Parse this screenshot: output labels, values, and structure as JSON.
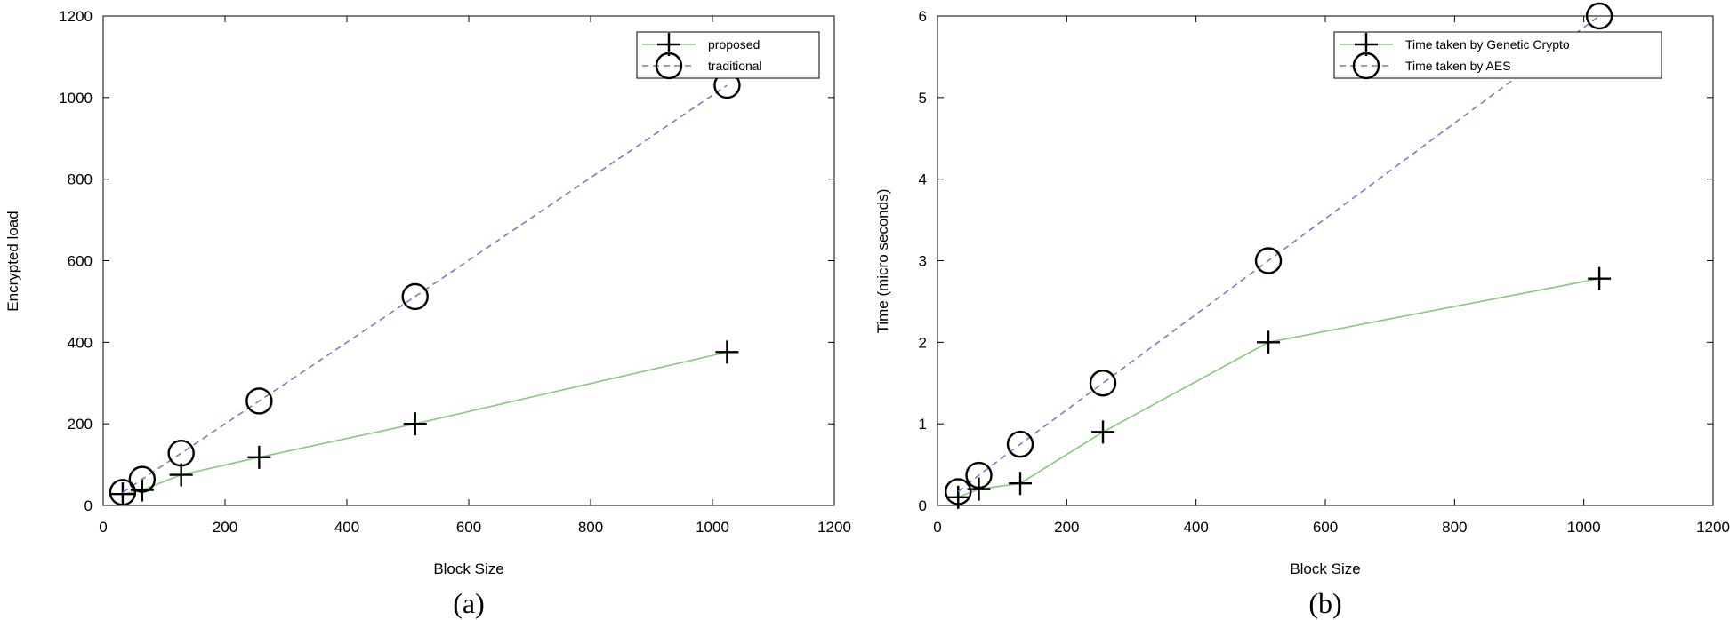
{
  "chart_data": [
    {
      "type": "line",
      "caption": "(a)",
      "xlabel": "Block Size",
      "ylabel": "Encrypted load",
      "xlim": [
        0,
        1200
      ],
      "ylim": [
        0,
        1200
      ],
      "xticks": [
        0,
        200,
        400,
        600,
        800,
        1000,
        1200
      ],
      "yticks": [
        0,
        200,
        400,
        600,
        800,
        1000,
        1200
      ],
      "legend_position": "top-right",
      "series": [
        {
          "name": "proposed",
          "color": "#86c97a",
          "line": "solid",
          "marker": "plus",
          "points": [
            [
              32,
              28
            ],
            [
              64,
              38
            ],
            [
              128,
              75
            ],
            [
              256,
              118
            ],
            [
              512,
              200
            ],
            [
              1024,
              376
            ]
          ]
        },
        {
          "name": "traditional",
          "color": "#7b7bc8",
          "line": "dashed",
          "marker": "circle",
          "points": [
            [
              32,
              32
            ],
            [
              64,
              64
            ],
            [
              128,
              128
            ],
            [
              256,
              256
            ],
            [
              512,
              512
            ],
            [
              1024,
              1030
            ]
          ]
        }
      ]
    },
    {
      "type": "line",
      "caption": "(b)",
      "xlabel": "Block Size",
      "ylabel": "Time (micro seconds)",
      "xlim": [
        0,
        1200
      ],
      "ylim": [
        0,
        6
      ],
      "xticks": [
        0,
        200,
        400,
        600,
        800,
        1000,
        1200
      ],
      "yticks": [
        0,
        1,
        2,
        3,
        4,
        5,
        6
      ],
      "legend_position": "top-right",
      "series": [
        {
          "name": "Time taken by Genetic Crypto",
          "color": "#86c97a",
          "line": "solid",
          "marker": "plus",
          "points": [
            [
              32,
              0.1
            ],
            [
              64,
              0.2
            ],
            [
              128,
              0.27
            ],
            [
              256,
              0.9
            ],
            [
              512,
              2.0
            ],
            [
              1024,
              2.78
            ]
          ]
        },
        {
          "name": "Time taken by AES",
          "color": "#7b7bc8",
          "line": "dashed",
          "marker": "circle",
          "points": [
            [
              32,
              0.17
            ],
            [
              64,
              0.37
            ],
            [
              128,
              0.75
            ],
            [
              256,
              1.5
            ],
            [
              512,
              3.0
            ],
            [
              1024,
              6.0
            ]
          ]
        }
      ]
    }
  ]
}
